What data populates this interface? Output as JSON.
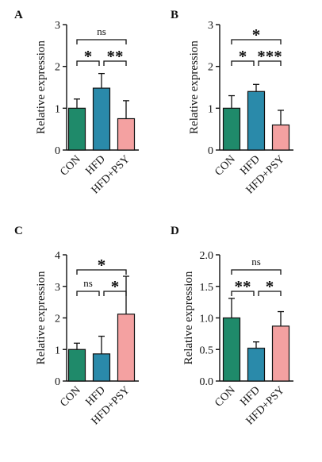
{
  "colors": {
    "CON": "#1f8a6a",
    "HFD": "#2a8aaa",
    "HFD+PSY": "#f4a1a1"
  },
  "chart_data": [
    {
      "type": "bar",
      "panel": "A",
      "categories": [
        "CON",
        "HFD",
        "HFD+PSY"
      ],
      "values": [
        1.0,
        1.48,
        0.75
      ],
      "errors": [
        0.22,
        0.35,
        0.43
      ],
      "ylabel": "Relative expression",
      "ylim": [
        0,
        3
      ],
      "yticks": [
        "0",
        "1",
        "2",
        "3"
      ],
      "tick_values": [
        0,
        1,
        2,
        3
      ],
      "significance": [
        {
          "from": 0,
          "to": 2,
          "label": "ns"
        },
        {
          "from": 0,
          "to": 1,
          "label": "*"
        },
        {
          "from": 1,
          "to": 2,
          "label": "**"
        }
      ]
    },
    {
      "type": "bar",
      "panel": "B",
      "categories": [
        "CON",
        "HFD",
        "HFD+PSY"
      ],
      "values": [
        1.0,
        1.4,
        0.6
      ],
      "errors": [
        0.3,
        0.17,
        0.35
      ],
      "ylabel": "Relative expression",
      "ylim": [
        0,
        3
      ],
      "yticks": [
        "0",
        "1",
        "2",
        "3"
      ],
      "tick_values": [
        0,
        1,
        2,
        3
      ],
      "significance": [
        {
          "from": 0,
          "to": 2,
          "label": "*"
        },
        {
          "from": 0,
          "to": 1,
          "label": "*"
        },
        {
          "from": 1,
          "to": 2,
          "label": "***"
        }
      ]
    },
    {
      "type": "bar",
      "panel": "C",
      "categories": [
        "CON",
        "HFD",
        "HFD+PSY"
      ],
      "values": [
        1.0,
        0.86,
        2.12
      ],
      "errors": [
        0.2,
        0.56,
        1.2
      ],
      "ylabel": "Relative expression",
      "ylim": [
        0,
        4
      ],
      "yticks": [
        "0",
        "1",
        "2",
        "3",
        "4"
      ],
      "tick_values": [
        0,
        1,
        2,
        3,
        4
      ],
      "significance": [
        {
          "from": 0,
          "to": 2,
          "label": "*"
        },
        {
          "from": 0,
          "to": 1,
          "label": "ns"
        },
        {
          "from": 1,
          "to": 2,
          "label": "*"
        }
      ]
    },
    {
      "type": "bar",
      "panel": "D",
      "categories": [
        "CON",
        "HFD",
        "HFD+PSY"
      ],
      "values": [
        1.0,
        0.52,
        0.87
      ],
      "errors": [
        0.31,
        0.1,
        0.23
      ],
      "ylabel": "Relative expression",
      "ylim": [
        0,
        2
      ],
      "yticks": [
        "0.0",
        "0.5",
        "1.0",
        "1.5",
        "2.0"
      ],
      "tick_values": [
        0,
        0.5,
        1,
        1.5,
        2
      ],
      "significance": [
        {
          "from": 0,
          "to": 2,
          "label": "ns"
        },
        {
          "from": 0,
          "to": 1,
          "label": "**"
        },
        {
          "from": 1,
          "to": 2,
          "label": "*"
        }
      ]
    }
  ]
}
